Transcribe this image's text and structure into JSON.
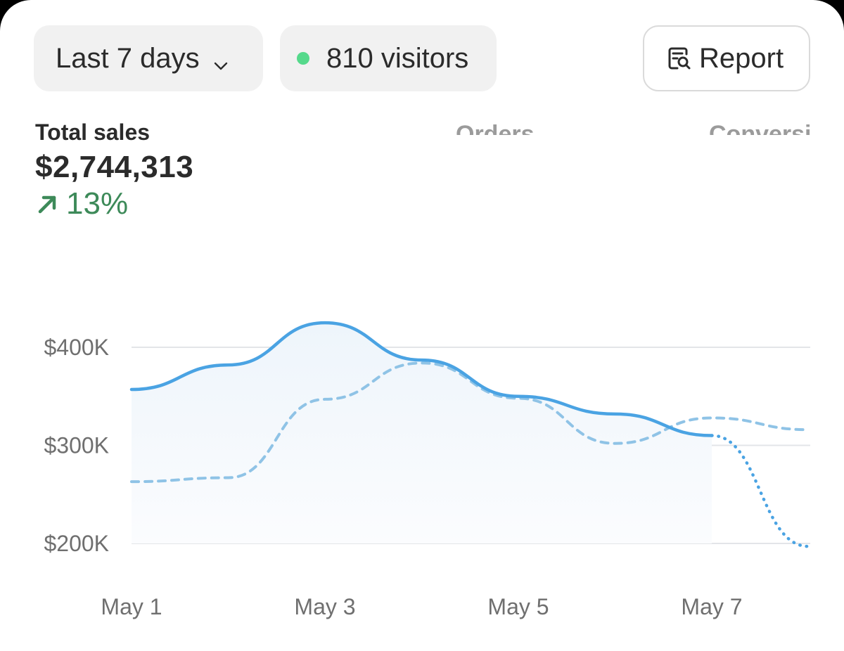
{
  "toolbar": {
    "range_label": "Last 7 days",
    "visitors_label": "810 visitors",
    "report_label": "Report",
    "icons": {
      "range": "chevron-down-icon",
      "visitors": "status-dot-icon",
      "report": "report-search-icon"
    },
    "status_dot_color": "#55d98b"
  },
  "metrics": {
    "total_sales": {
      "label": "Total sales",
      "value": "$2,744,313",
      "change": "13%",
      "change_color": "#3d8a59"
    },
    "orders": {
      "label": "Orders"
    },
    "conversion": {
      "label": "Conversi"
    }
  },
  "chart_data": {
    "type": "line",
    "categories": [
      "May 1",
      "May 2",
      "May 3",
      "May 4",
      "May 5",
      "May 6",
      "May 7",
      "May 8"
    ],
    "x_tick_labels": [
      "May 1",
      "May 3",
      "May 5",
      "May 7"
    ],
    "y_tick_labels": [
      "$200K",
      "$300K",
      "$400K"
    ],
    "ylim": [
      200000,
      400000
    ],
    "grid": true,
    "series": [
      {
        "style": "solid",
        "color": "#4aa3e3",
        "values": [
          357000,
          382000,
          425000,
          387000,
          350000,
          332000,
          310000,
          197000
        ],
        "projected_from_index": 6
      },
      {
        "style": "dashed",
        "color": "#8fc3e6",
        "values": [
          263000,
          267000,
          347000,
          384000,
          348000,
          302000,
          328000,
          316000
        ]
      }
    ]
  }
}
